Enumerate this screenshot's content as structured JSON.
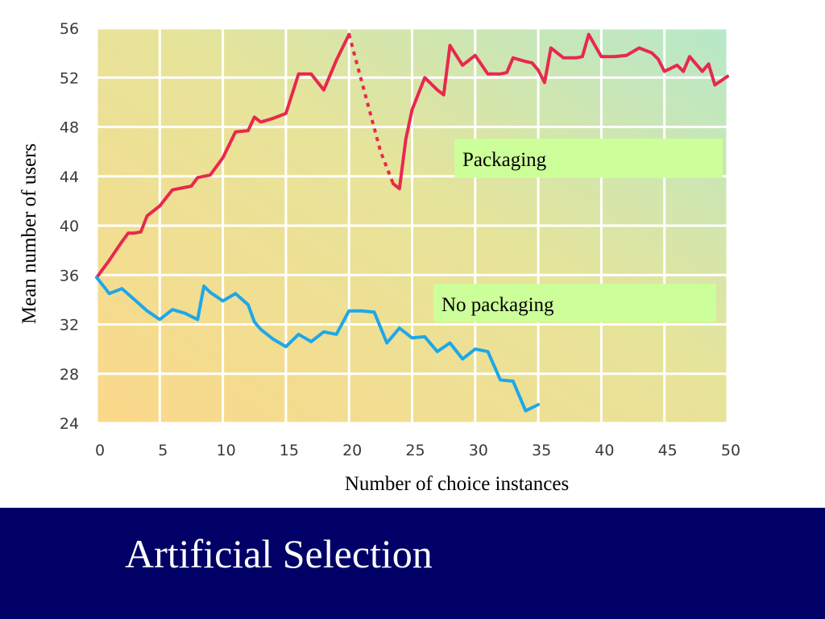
{
  "slide": {
    "title": "Artificial Selection",
    "footer_color": "#000066"
  },
  "chart_data": {
    "type": "line",
    "title": "",
    "xlabel": "Number of choice instances",
    "ylabel": "Mean number of users",
    "xlim": [
      0,
      50
    ],
    "ylim": [
      24,
      56
    ],
    "xticks": [
      0,
      5,
      10,
      15,
      20,
      25,
      30,
      35,
      40,
      45,
      50
    ],
    "yticks": [
      24,
      28,
      32,
      36,
      40,
      44,
      48,
      52,
      56
    ],
    "grid": true,
    "legend": "none",
    "annotations": [
      {
        "text": "Packaging",
        "series": "Packaging",
        "color": "#ccff99"
      },
      {
        "text": "No packaging",
        "series": "No packaging",
        "color": "#ccff99"
      }
    ],
    "series": [
      {
        "name": "Packaging",
        "color": "#e8284f",
        "segments": [
          {
            "style": "solid",
            "points": [
              [
                0,
                35.8
              ],
              [
                1,
                37.2
              ],
              [
                2,
                38.7
              ],
              [
                2.5,
                39.4
              ],
              [
                3,
                39.4
              ],
              [
                3.5,
                39.5
              ],
              [
                4,
                40.8
              ],
              [
                5,
                41.6
              ],
              [
                6,
                42.9
              ],
              [
                7,
                43.1
              ],
              [
                7.5,
                43.2
              ],
              [
                8,
                43.9
              ],
              [
                9,
                44.1
              ],
              [
                10,
                45.5
              ],
              [
                11,
                47.6
              ],
              [
                12,
                47.7
              ],
              [
                12.5,
                48.8
              ],
              [
                13,
                48.4
              ],
              [
                14,
                48.7
              ],
              [
                15,
                49.1
              ],
              [
                16,
                52.3
              ],
              [
                17,
                52.3
              ],
              [
                18,
                51
              ],
              [
                19,
                53.4
              ],
              [
                20,
                55.5
              ]
            ]
          },
          {
            "style": "dashed",
            "points": [
              [
                20,
                55.5
              ],
              [
                21.5,
                49.8
              ],
              [
                22.5,
                46
              ],
              [
                23.5,
                43.4
              ]
            ]
          },
          {
            "style": "solid",
            "points": [
              [
                23.5,
                43.4
              ],
              [
                24,
                43
              ],
              [
                24.5,
                47
              ],
              [
                25,
                49.4
              ],
              [
                26,
                52
              ],
              [
                27,
                51
              ],
              [
                27.5,
                50.6
              ],
              [
                28,
                54.6
              ],
              [
                29,
                53
              ],
              [
                30,
                53.8
              ],
              [
                31,
                52.3
              ],
              [
                32,
                52.3
              ],
              [
                32.5,
                52.4
              ],
              [
                33,
                53.6
              ],
              [
                34,
                53.3
              ],
              [
                34.5,
                53.2
              ],
              [
                35,
                52.6
              ],
              [
                35.5,
                51.6
              ],
              [
                36,
                54.4
              ],
              [
                37,
                53.6
              ],
              [
                38,
                53.6
              ],
              [
                38.5,
                53.7
              ],
              [
                39,
                55.5
              ],
              [
                40,
                53.7
              ],
              [
                41,
                53.7
              ],
              [
                42,
                53.8
              ],
              [
                43,
                54.4
              ],
              [
                44,
                54
              ],
              [
                44.5,
                53.5
              ],
              [
                45,
                52.5
              ],
              [
                46,
                53
              ],
              [
                46.5,
                52.5
              ],
              [
                47,
                53.7
              ],
              [
                48,
                52.5
              ],
              [
                48.5,
                53.1
              ],
              [
                49,
                51.4
              ],
              [
                50,
                52.1
              ]
            ]
          }
        ]
      },
      {
        "name": "No packaging",
        "color": "#1ea7e8",
        "segments": [
          {
            "style": "solid",
            "points": [
              [
                0,
                35.8
              ],
              [
                1,
                34.5
              ],
              [
                2,
                34.9
              ],
              [
                3,
                34
              ],
              [
                4,
                33.1
              ],
              [
                5,
                32.4
              ],
              [
                6,
                33.2
              ],
              [
                7,
                32.9
              ],
              [
                8,
                32.4
              ],
              [
                8.5,
                35.1
              ],
              [
                9,
                34.6
              ],
              [
                10,
                33.9
              ],
              [
                11,
                34.5
              ],
              [
                12,
                33.6
              ],
              [
                12.5,
                32.2
              ],
              [
                13,
                31.6
              ],
              [
                14,
                30.8
              ],
              [
                15,
                30.2
              ],
              [
                16,
                31.2
              ],
              [
                17,
                30.6
              ],
              [
                18,
                31.4
              ],
              [
                19,
                31.2
              ],
              [
                20,
                33.1
              ],
              [
                21,
                33.1
              ],
              [
                22,
                33
              ],
              [
                23,
                30.5
              ],
              [
                24,
                31.7
              ],
              [
                25,
                30.9
              ],
              [
                26,
                31
              ],
              [
                27,
                29.8
              ],
              [
                28,
                30.5
              ],
              [
                29,
                29.2
              ],
              [
                30,
                30
              ],
              [
                31,
                29.8
              ],
              [
                32,
                27.5
              ],
              [
                33,
                27.4
              ],
              [
                34,
                25
              ],
              [
                35,
                25.5
              ]
            ]
          }
        ]
      }
    ]
  }
}
